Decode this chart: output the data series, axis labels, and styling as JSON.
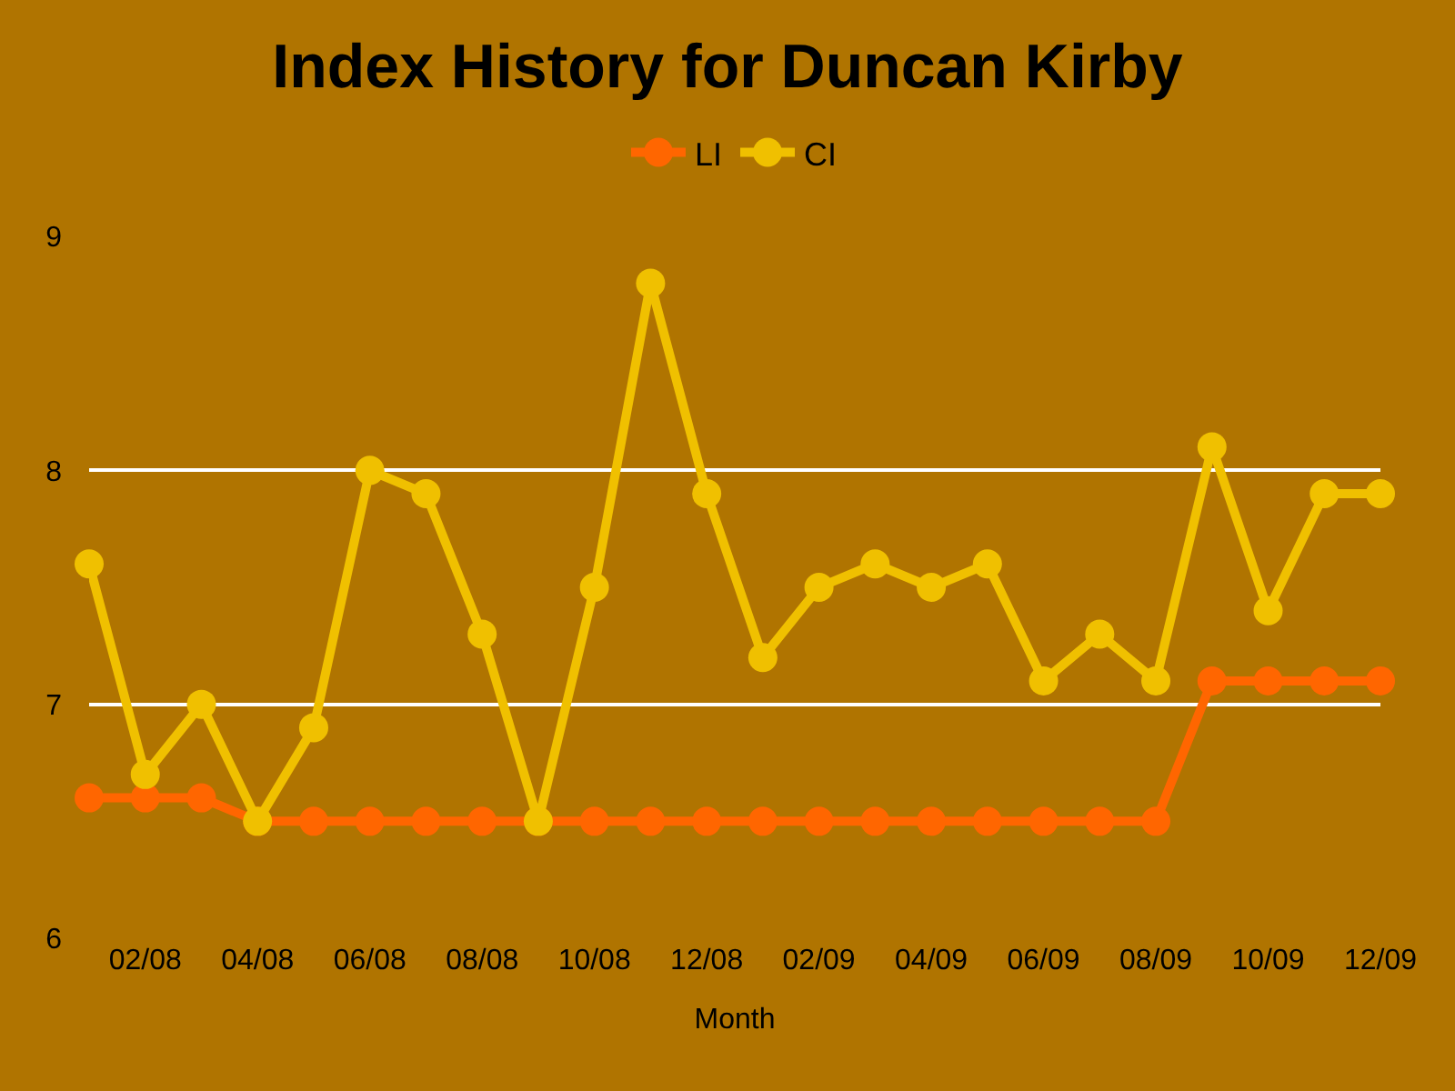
{
  "chart_data": {
    "type": "line",
    "title": "Index History for Duncan Kirby",
    "xlabel": "Month",
    "categories": [
      null,
      "02/08",
      null,
      "04/08",
      null,
      "06/08",
      null,
      "08/08",
      null,
      "10/08",
      null,
      "12/08",
      null,
      "02/09",
      null,
      "04/09",
      null,
      "06/09",
      null,
      "08/09",
      null,
      "10/09",
      null,
      "12/09"
    ],
    "series": [
      {
        "name": "LI",
        "color": "#ff6600",
        "values": [
          6.6,
          6.6,
          6.6,
          6.5,
          6.5,
          6.5,
          6.5,
          6.5,
          6.5,
          6.5,
          6.5,
          6.5,
          6.5,
          6.5,
          6.5,
          6.5,
          6.5,
          6.5,
          6.5,
          6.5,
          7.1,
          7.1,
          7.1,
          7.1
        ]
      },
      {
        "name": "CI",
        "color": "#f0c000",
        "values": [
          7.6,
          6.7,
          7.0,
          6.5,
          6.9,
          8.0,
          7.9,
          7.3,
          6.5,
          7.5,
          8.8,
          7.9,
          7.2,
          7.5,
          7.6,
          7.5,
          7.6,
          7.1,
          7.3,
          7.1,
          8.1,
          7.4,
          7.9,
          7.9
        ]
      }
    ],
    "ylim": [
      6,
      9
    ],
    "yticks": [
      6,
      7,
      8,
      9
    ],
    "grid": "y",
    "legend": "top",
    "marker": "circle",
    "line_style": "solid"
  }
}
